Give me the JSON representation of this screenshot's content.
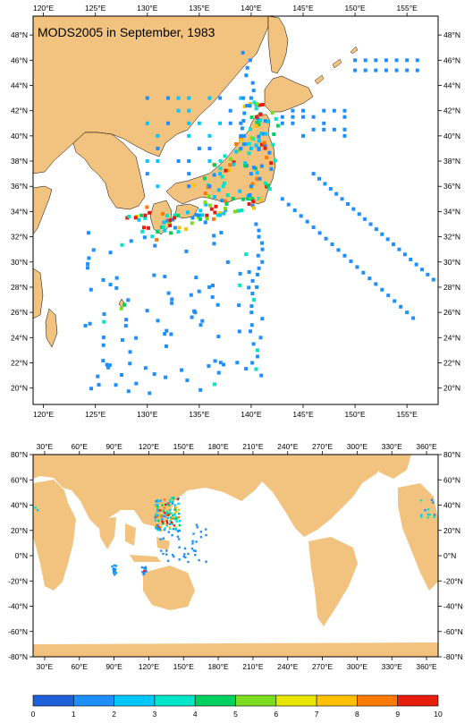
{
  "top_map": {
    "title": "MODS2005 in September, 1983",
    "lon_labels": [
      "120°E",
      "125°E",
      "130°E",
      "135°E",
      "140°E",
      "145°E",
      "150°E",
      "155°E"
    ],
    "lat_labels": [
      "20°N",
      "22°N",
      "24°N",
      "26°N",
      "28°N",
      "30°N",
      "32°N",
      "34°N",
      "36°N",
      "38°N",
      "40°N",
      "42°N",
      "44°N",
      "46°N",
      "48°N"
    ],
    "lon_range": [
      119,
      158
    ],
    "lat_range": [
      18.7,
      49.5
    ],
    "land_color": "#f2c27f",
    "ocean_color": "#ffffff"
  },
  "bottom_map": {
    "lon_labels": [
      "30°E",
      "60°E",
      "90°E",
      "120°E",
      "150°E",
      "180°E",
      "210°E",
      "240°E",
      "270°E",
      "300°E",
      "330°E",
      "360°E"
    ],
    "lat_labels": [
      "80°N",
      "60°N",
      "40°N",
      "20°N",
      "0°N",
      "-20°N",
      "-40°N",
      "-60°N",
      "-80°N"
    ],
    "lon_range": [
      20,
      370
    ],
    "lat_range": [
      -80,
      80
    ]
  },
  "colorbar": {
    "labels": [
      "0",
      "1",
      "2",
      "3",
      "4",
      "5",
      "6",
      "7",
      "8",
      "9",
      "10"
    ],
    "colors": [
      "#1f5fd8",
      "#1e8fff",
      "#00c8ff",
      "#00e6c8",
      "#00d060",
      "#7ddc20",
      "#e6e600",
      "#ffc000",
      "#ff7a00",
      "#e81e0c"
    ]
  }
}
